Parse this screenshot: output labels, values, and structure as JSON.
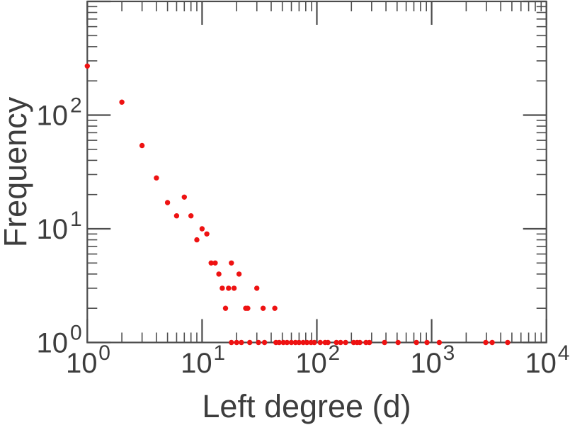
{
  "figure": {
    "background": "#ffffff",
    "frame_color": "#4d4d4d",
    "text_color": "#3d3d3d",
    "point_color": "#ee1212"
  },
  "chart_data": {
    "type": "scatter",
    "title": "",
    "xlabel": "Left degree (d)",
    "ylabel": "Frequency",
    "x_scale": "log",
    "y_scale": "log",
    "xlim": [
      1,
      10000
    ],
    "ylim": [
      1,
      1000
    ],
    "grid": false,
    "legend": "none",
    "marker": "filled-circle",
    "tick_label_base": "10",
    "x_tick_exponents": [
      0,
      1,
      2,
      3,
      4
    ],
    "y_tick_exponents": [
      0,
      1,
      2
    ],
    "points": [
      [
        1,
        270
      ],
      [
        2,
        130
      ],
      [
        3,
        54
      ],
      [
        4,
        28
      ],
      [
        5,
        17
      ],
      [
        6,
        13
      ],
      [
        7,
        19
      ],
      [
        8,
        13
      ],
      [
        9,
        8
      ],
      [
        10,
        10
      ],
      [
        11,
        9
      ],
      [
        12,
        5
      ],
      [
        13,
        5
      ],
      [
        18,
        5
      ],
      [
        14,
        4
      ],
      [
        21,
        4
      ],
      [
        15,
        3
      ],
      [
        17,
        3
      ],
      [
        19,
        3
      ],
      [
        30,
        3
      ],
      [
        16,
        2
      ],
      [
        24,
        2
      ],
      [
        25,
        2
      ],
      [
        34,
        2
      ],
      [
        43,
        2
      ],
      [
        18,
        1
      ],
      [
        20,
        1
      ],
      [
        22,
        1
      ],
      [
        26,
        1
      ],
      [
        31,
        1
      ],
      [
        35,
        1
      ],
      [
        44,
        1
      ],
      [
        47,
        1
      ],
      [
        51,
        1
      ],
      [
        55,
        1
      ],
      [
        60,
        1
      ],
      [
        65,
        1
      ],
      [
        70,
        1
      ],
      [
        76,
        1
      ],
      [
        82,
        1
      ],
      [
        89,
        1
      ],
      [
        95,
        1
      ],
      [
        107,
        1
      ],
      [
        118,
        1
      ],
      [
        125,
        1
      ],
      [
        148,
        1
      ],
      [
        161,
        1
      ],
      [
        178,
        1
      ],
      [
        209,
        1
      ],
      [
        224,
        1
      ],
      [
        237,
        1
      ],
      [
        268,
        1
      ],
      [
        287,
        1
      ],
      [
        389,
        1
      ],
      [
        510,
        1
      ],
      [
        737,
        1
      ],
      [
        911,
        1
      ],
      [
        1166,
        1
      ],
      [
        2960,
        1
      ],
      [
        3370,
        1
      ],
      [
        4600,
        1
      ]
    ]
  }
}
